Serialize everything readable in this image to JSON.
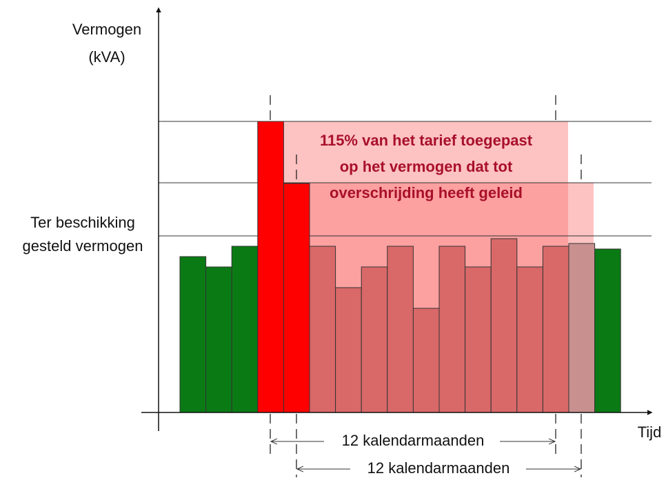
{
  "y_axis": {
    "label": [
      "Vermogen",
      "(kVA)"
    ]
  },
  "x_axis": {
    "label": "Tijd"
  },
  "threshold": {
    "label": [
      "Ter beschikking",
      "gesteld vermogen"
    ]
  },
  "note": [
    "115% van het tarief toegepast",
    "op het vermogen dat tot",
    "overschrijding heeft geleid"
  ],
  "periods": [
    "12 kalendarmaanden",
    "12 kalendarmaanden"
  ]
}
